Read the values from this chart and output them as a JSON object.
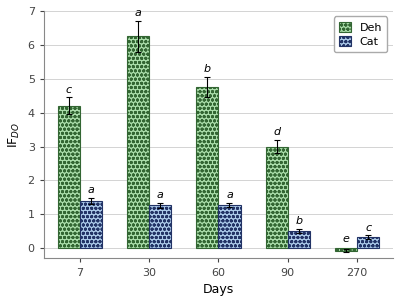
{
  "days": [
    7,
    30,
    60,
    90,
    270
  ],
  "deh_values": [
    4.2,
    6.25,
    4.75,
    3.0,
    -0.07
  ],
  "deh_errors": [
    0.25,
    0.45,
    0.3,
    0.2,
    0.05
  ],
  "cat_values": [
    1.4,
    1.27,
    1.28,
    0.52,
    0.33
  ],
  "cat_errors": [
    0.08,
    0.07,
    0.07,
    0.06,
    0.05
  ],
  "deh_labels": [
    "c",
    "a",
    "b",
    "d",
    "e"
  ],
  "cat_labels": [
    "a",
    "a",
    "a",
    "b",
    "c"
  ],
  "deh_color": "#aaddaa",
  "cat_color": "#aac8e8",
  "deh_edge": "#336633",
  "cat_edge": "#223366",
  "bar_width": 0.32,
  "ylim": [
    -0.3,
    7.0
  ],
  "yticks": [
    0,
    1,
    2,
    3,
    4,
    5,
    6,
    7
  ],
  "xlabel": "Days",
  "ylabel": "IF$_{DO}$",
  "legend_deh": "Deh",
  "legend_cat": "Cat",
  "background_color": "#ffffff",
  "axis_fontsize": 9,
  "tick_fontsize": 8,
  "label_fontsize": 8
}
